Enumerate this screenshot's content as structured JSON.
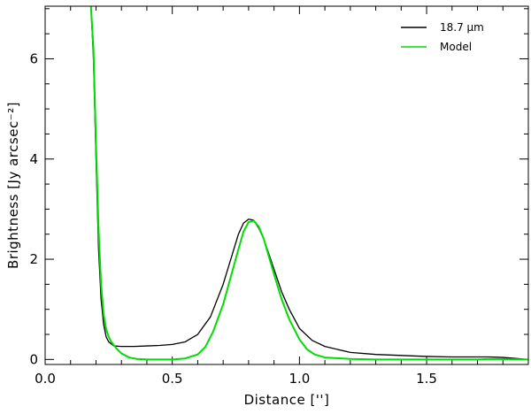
{
  "chart_data": {
    "type": "line",
    "title": "",
    "xlabel": "Distance ['']",
    "ylabel": "Brightness [Jy arcsec⁻²]",
    "xlim": [
      0.0,
      1.9
    ],
    "ylim": [
      -0.1,
      7.05
    ],
    "xticks": [
      0.0,
      0.5,
      1.0,
      1.5
    ],
    "xtick_labels": [
      "0.0",
      "0.5",
      "1.0",
      "1.5"
    ],
    "yticks": [
      0,
      2,
      4,
      6
    ],
    "ytick_labels": [
      "0",
      "2",
      "4",
      "6"
    ],
    "grid": false,
    "legend_position": "top-right",
    "series": [
      {
        "name": "18.7 μm",
        "color": "#000000",
        "x": [
          0.18,
          0.19,
          0.2,
          0.21,
          0.22,
          0.23,
          0.24,
          0.25,
          0.27,
          0.3,
          0.35,
          0.4,
          0.45,
          0.5,
          0.55,
          0.6,
          0.65,
          0.7,
          0.73,
          0.76,
          0.78,
          0.8,
          0.82,
          0.84,
          0.86,
          0.88,
          0.9,
          0.93,
          0.96,
          1.0,
          1.05,
          1.1,
          1.2,
          1.3,
          1.4,
          1.5,
          1.6,
          1.7,
          1.75,
          1.8,
          1.85,
          1.9
        ],
        "y": [
          7.05,
          6.0,
          4.0,
          2.2,
          1.2,
          0.7,
          0.45,
          0.35,
          0.27,
          0.26,
          0.26,
          0.27,
          0.28,
          0.3,
          0.35,
          0.5,
          0.85,
          1.5,
          2.0,
          2.5,
          2.72,
          2.8,
          2.78,
          2.62,
          2.4,
          2.1,
          1.8,
          1.35,
          1.0,
          0.62,
          0.38,
          0.26,
          0.14,
          0.1,
          0.08,
          0.06,
          0.05,
          0.05,
          0.05,
          0.04,
          0.02,
          0.0
        ]
      },
      {
        "name": "Model",
        "color": "#00dd00",
        "x": [
          0.18,
          0.19,
          0.2,
          0.21,
          0.22,
          0.23,
          0.24,
          0.25,
          0.26,
          0.28,
          0.3,
          0.33,
          0.36,
          0.4,
          0.45,
          0.5,
          0.55,
          0.6,
          0.63,
          0.66,
          0.7,
          0.73,
          0.76,
          0.78,
          0.8,
          0.82,
          0.84,
          0.86,
          0.88,
          0.9,
          0.93,
          0.96,
          1.0,
          1.03,
          1.06,
          1.1,
          1.2,
          1.3,
          1.5,
          1.7,
          1.75,
          1.9
        ],
        "y": [
          7.05,
          6.2,
          4.3,
          2.6,
          1.5,
          0.9,
          0.6,
          0.45,
          0.35,
          0.22,
          0.12,
          0.04,
          0.01,
          0.0,
          0.0,
          0.0,
          0.02,
          0.1,
          0.25,
          0.55,
          1.1,
          1.65,
          2.2,
          2.55,
          2.74,
          2.77,
          2.65,
          2.4,
          2.05,
          1.7,
          1.2,
          0.8,
          0.4,
          0.2,
          0.1,
          0.04,
          0.01,
          0.0,
          0.0,
          0.0,
          0.01,
          0.0
        ]
      }
    ]
  }
}
